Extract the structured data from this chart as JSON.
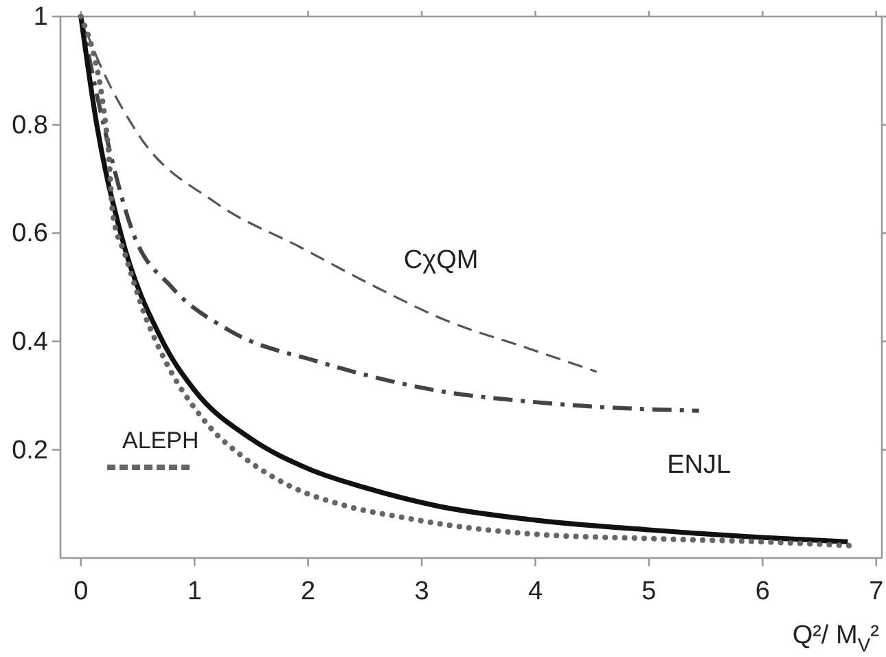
{
  "chart_data": {
    "type": "line",
    "xlabel": "Q²/ M$_{V}$²",
    "xlim": [
      -0.18,
      7.05
    ],
    "ylim": [
      0,
      1
    ],
    "xticks": [
      0,
      1,
      2,
      3,
      4,
      5,
      6,
      7
    ],
    "yticks": [
      {
        "value": 0.2,
        "label": "0.2"
      },
      {
        "value": 0.4,
        "label": "0.4"
      },
      {
        "value": 0.6,
        "label": "0.6"
      },
      {
        "value": 0.8,
        "label": "0.8"
      },
      {
        "value": 1,
        "label": "1"
      }
    ],
    "grid": false,
    "legend": "bottom left",
    "marker": "none",
    "series": [
      {
        "name": "CχQM",
        "color": "#555555",
        "line_style": "dashed",
        "x": [
          0,
          0.06,
          0.5,
          1.18,
          1.94,
          2.6,
          3.2,
          3.94,
          4.54
        ],
        "values": [
          1,
          0.966,
          0.784,
          0.657,
          0.573,
          0.5,
          0.44,
          0.387,
          0.344
        ]
      },
      {
        "name": "ENJL",
        "color": "#444444",
        "line_style": "dashdot",
        "x": [
          0,
          0.2,
          0.46,
          0.8,
          1.3,
          2.1,
          3.2,
          3.94,
          4.74,
          5.44
        ],
        "values": [
          1,
          0.8,
          0.6,
          0.5,
          0.421,
          0.362,
          0.307,
          0.289,
          0.277,
          0.272
        ]
      },
      {
        "color": "#111111",
        "line_style": "solid",
        "x": [
          0,
          0.14,
          0.35,
          0.72,
          1.0,
          1.5,
          2.0,
          2.5,
          3.14,
          4,
          5,
          6,
          6.75
        ],
        "values": [
          1,
          0.8,
          0.6,
          0.4,
          0.31,
          0.22,
          0.165,
          0.13,
          0.096,
          0.07,
          0.052,
          0.038,
          0.03
        ]
      },
      {
        "name": "ALEPH",
        "color": "#666666",
        "line_style": "dotted",
        "x": [
          0,
          0.24,
          0.28,
          0.39,
          0.48,
          0.56,
          0.65,
          0.82,
          0.99,
          1.16,
          1.42,
          1.83,
          2.34,
          2.86,
          3.23,
          4,
          5,
          6,
          6.76
        ],
        "values": [
          1,
          0.76,
          0.636,
          0.56,
          0.5,
          0.45,
          0.405,
          0.334,
          0.28,
          0.236,
          0.188,
          0.134,
          0.096,
          0.074,
          0.061,
          0.044,
          0.036,
          0.03,
          0.023
        ]
      }
    ]
  }
}
